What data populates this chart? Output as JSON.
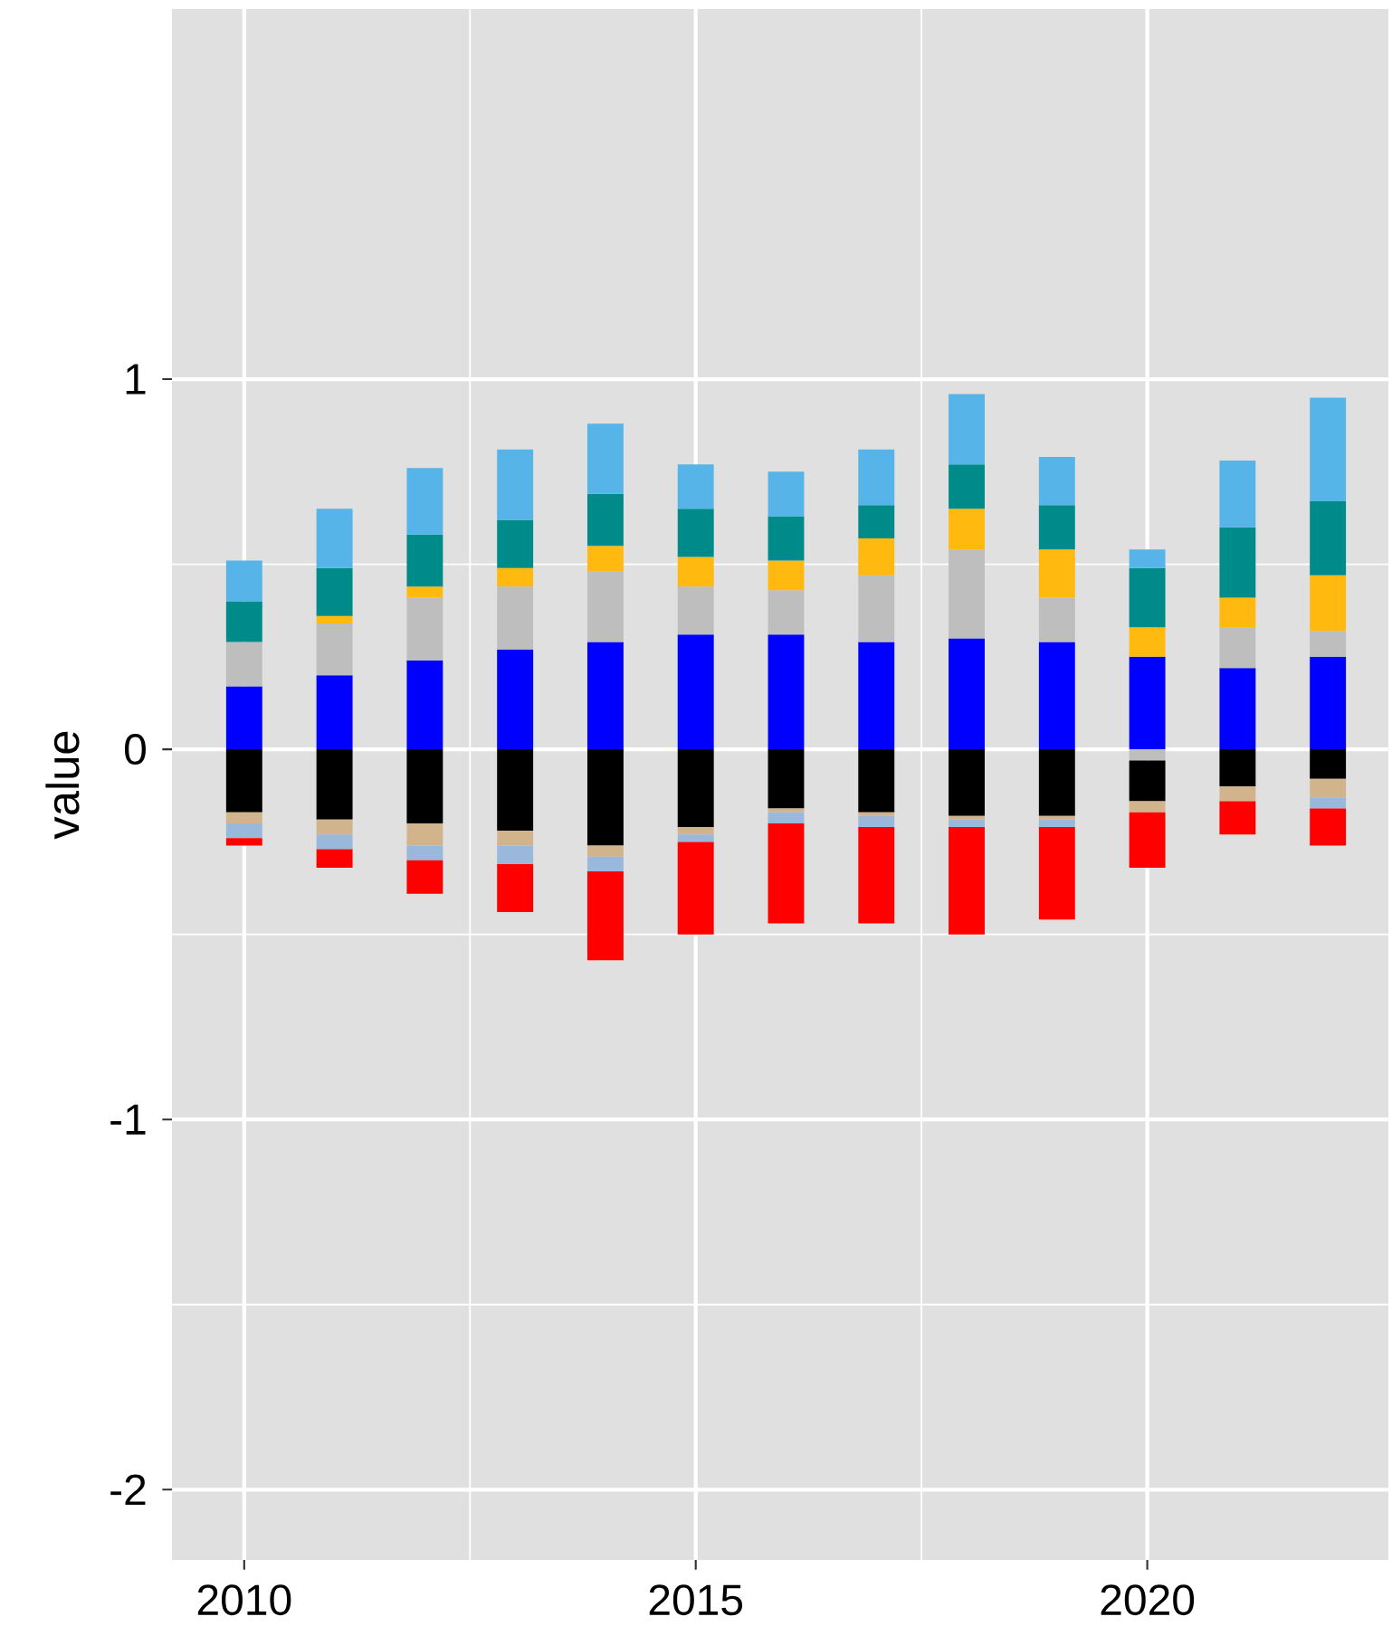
{
  "chart_data": {
    "type": "bar",
    "stacked": true,
    "ylabel": "value",
    "x": [
      2010,
      2011,
      2012,
      2013,
      2014,
      2015,
      2016,
      2017,
      2018,
      2019,
      2020,
      2021,
      2022
    ],
    "xlim": [
      2009.2,
      2022.67
    ],
    "xticks": [
      2010,
      2015,
      2020
    ],
    "ylim": [
      -2.19,
      2.0
    ],
    "yticks": [
      -2,
      -1,
      0,
      1
    ],
    "grid": true,
    "series": [
      {
        "color": "#0000ff",
        "values": [
          0.17,
          0.2,
          0.24,
          0.27,
          0.29,
          0.31,
          0.31,
          0.29,
          0.3,
          0.29,
          0.25,
          0.22,
          0.25
        ]
      },
      {
        "color": "#bebebe",
        "values": [
          0.12,
          0.14,
          0.17,
          0.17,
          0.19,
          0.13,
          0.12,
          0.18,
          0.24,
          0.12,
          -0.03,
          0.11,
          0.07
        ]
      },
      {
        "color": "#000000",
        "values": [
          -0.17,
          -0.19,
          -0.2,
          -0.22,
          -0.26,
          -0.21,
          -0.16,
          -0.17,
          -0.18,
          -0.18,
          -0.11,
          -0.1,
          -0.08
        ]
      },
      {
        "color": "#ffb90f",
        "values": [
          0,
          0.02,
          0.03,
          0.05,
          0.07,
          0.08,
          0.08,
          0.1,
          0.11,
          0.13,
          0.08,
          0.08,
          0.15
        ]
      },
      {
        "color": "#d2b48c",
        "values": [
          -0.03,
          -0.04,
          -0.06,
          -0.04,
          -0.03,
          -0.02,
          -0.01,
          -0.01,
          -0.01,
          -0.01,
          -0.03,
          -0.04,
          -0.05
        ]
      },
      {
        "color": "#008b8b",
        "values": [
          0.11,
          0.13,
          0.14,
          0.13,
          0.14,
          0.13,
          0.12,
          0.09,
          0.12,
          0.12,
          0.16,
          0.19,
          0.2
        ]
      },
      {
        "color": "#9ab8dc",
        "values": [
          -0.04,
          -0.04,
          -0.04,
          -0.05,
          -0.04,
          -0.02,
          -0.03,
          -0.03,
          -0.02,
          -0.02,
          0,
          0,
          -0.03
        ]
      },
      {
        "color": "#56b4e9",
        "values": [
          0.11,
          0.16,
          0.18,
          0.19,
          0.19,
          0.12,
          0.12,
          0.15,
          0.19,
          0.13,
          0.05,
          0.18,
          0.28
        ]
      },
      {
        "color": "#ff0000",
        "values": [
          -0.02,
          -0.05,
          -0.09,
          -0.13,
          -0.24,
          -0.25,
          -0.27,
          -0.26,
          -0.29,
          -0.25,
          -0.15,
          -0.09,
          -0.1
        ]
      }
    ]
  }
}
